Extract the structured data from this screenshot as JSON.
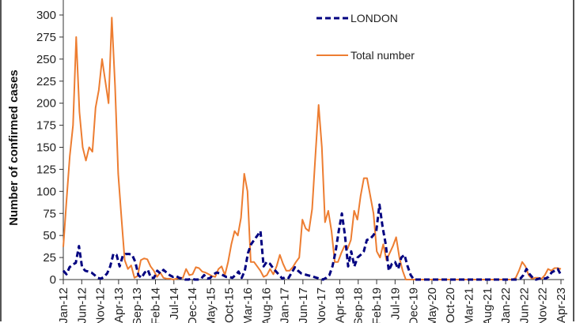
{
  "chart_data": {
    "type": "line",
    "title": "",
    "xlabel": "",
    "ylabel": "Number of confirmed cases",
    "ylim": [
      0,
      300
    ],
    "yticks": [
      0,
      25,
      50,
      75,
      100,
      125,
      150,
      175,
      200,
      225,
      250,
      275,
      300
    ],
    "grid": false,
    "legend_position": "upper center",
    "xtick_labels": [
      "Jan-12",
      "Jun-12",
      "Nov-12",
      "Apr-13",
      "Sep-13",
      "Feb-14",
      "Jul-14",
      "Dec-14",
      "May-15",
      "Oct-15",
      "Mar-16",
      "Aug-16",
      "Jan-17",
      "Jun-17",
      "Nov-17",
      "Apr-18",
      "Sep-18",
      "Feb-19",
      "Jul-19",
      "Dec-19",
      "May-20",
      "Oct-20",
      "Mar-21",
      "Aug-21",
      "Jan-22",
      "Jun-22",
      "Nov-22",
      "Apr-23"
    ],
    "x_start": "Jan-12",
    "x_interval": "month",
    "series": [
      {
        "name": "LONDON",
        "color": "#000080",
        "style": "dashed",
        "values": [
          10,
          6,
          14,
          17,
          19,
          38,
          14,
          10,
          9,
          8,
          5,
          2,
          1,
          3,
          7,
          15,
          29,
          28,
          15,
          27,
          29,
          29,
          28,
          20,
          5,
          2,
          8,
          11,
          2,
          2,
          10,
          7,
          11,
          8,
          5,
          3,
          4,
          2,
          1,
          0,
          0,
          1,
          0,
          0,
          1,
          5,
          1,
          2,
          6,
          8,
          7,
          5,
          3,
          3,
          2,
          5,
          9,
          2,
          10,
          30,
          40,
          45,
          50,
          55,
          15,
          20,
          18,
          13,
          9,
          5,
          1,
          3,
          2,
          8,
          14,
          10,
          7,
          6,
          5,
          4,
          3,
          2,
          1,
          0,
          2,
          5,
          15,
          32,
          55,
          75,
          50,
          15,
          32,
          15,
          25,
          28,
          32,
          45,
          46,
          50,
          55,
          85,
          60,
          40,
          10,
          18,
          20,
          12,
          25,
          28,
          15,
          5,
          0,
          0,
          0,
          0,
          0,
          0,
          0,
          0,
          0,
          0,
          0,
          0,
          0,
          0,
          0,
          0,
          0,
          0,
          0,
          0,
          0,
          0,
          0,
          0,
          0,
          0,
          0,
          0,
          0,
          0,
          0,
          0,
          0,
          0,
          1,
          5,
          12,
          6,
          2,
          0,
          1,
          2,
          1,
          3,
          8,
          10,
          12,
          5
        ],
        "sample_note": "monthly readings, estimated from plot"
      },
      {
        "name": "Total number",
        "color": "#ED7D31",
        "style": "solid",
        "values": [
          37,
          90,
          140,
          175,
          275,
          190,
          150,
          135,
          150,
          145,
          195,
          215,
          250,
          225,
          200,
          297,
          220,
          120,
          70,
          22,
          12,
          16,
          2,
          4,
          22,
          24,
          23,
          15,
          10,
          3,
          8,
          2,
          1,
          1,
          0,
          1,
          2,
          2,
          12,
          5,
          6,
          14,
          13,
          9,
          8,
          6,
          4,
          3,
          12,
          15,
          5,
          20,
          40,
          55,
          50,
          70,
          120,
          100,
          20,
          20,
          15,
          10,
          3,
          5,
          12,
          6,
          15,
          28,
          18,
          10,
          10,
          14,
          20,
          25,
          68,
          58,
          55,
          80,
          140,
          198,
          150,
          65,
          78,
          55,
          20,
          20,
          30,
          38,
          35,
          45,
          78,
          68,
          95,
          115,
          115,
          95,
          75,
          32,
          25,
          40,
          22,
          30,
          38,
          48,
          25,
          10,
          0,
          0,
          0,
          0,
          0,
          0,
          0,
          0,
          0,
          0,
          0,
          0,
          0,
          0,
          0,
          0,
          0,
          0,
          0,
          0,
          0,
          0,
          0,
          0,
          0,
          0,
          0,
          0,
          0,
          0,
          0,
          0,
          0,
          0,
          2,
          10,
          20,
          15,
          5,
          1,
          2,
          2,
          1,
          5,
          12,
          10,
          13,
          13,
          12
        ]
      }
    ]
  },
  "legend": {
    "items": [
      {
        "label": "LONDON",
        "color": "#000080",
        "style": "dashed"
      },
      {
        "label": "Total number",
        "color": "#ED7D31",
        "style": "solid"
      }
    ]
  }
}
